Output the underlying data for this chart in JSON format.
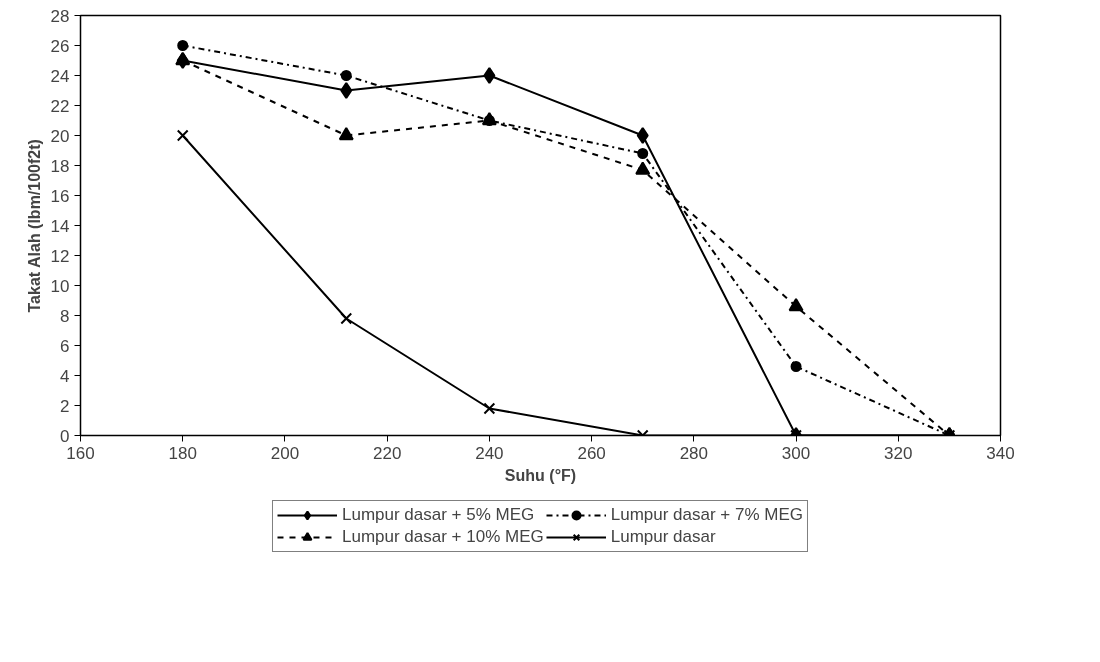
{
  "chart_data": {
    "type": "line",
    "xlabel": "Suhu (°F)",
    "ylabel": "Takat Alah (lbm/100f2t)",
    "x": [
      180,
      212,
      240,
      270,
      300,
      330
    ],
    "xlim": [
      160,
      340
    ],
    "xticks": [
      160,
      180,
      200,
      220,
      240,
      260,
      280,
      300,
      320,
      340
    ],
    "ylim": [
      0,
      28
    ],
    "yticks": [
      0,
      2,
      4,
      6,
      8,
      10,
      12,
      14,
      16,
      18,
      20,
      22,
      24,
      26,
      28
    ],
    "grid": false,
    "legend": "bottom",
    "series": [
      {
        "name": "Lumpur dasar + 5% MEG",
        "color": "#000000",
        "marker": "diamond",
        "line_style": "solid",
        "values": [
          25,
          23,
          24,
          20,
          0,
          0
        ]
      },
      {
        "name": "Lumpur dasar + 7% MEG",
        "color": "#000000",
        "marker": "circle",
        "line_style": "dashdot",
        "values": [
          26,
          24,
          21,
          18.8,
          4.6,
          0
        ]
      },
      {
        "name": "Lumpur dasar + 10% MEG",
        "color": "#000000",
        "marker": "triangle",
        "line_style": "dashed",
        "values": [
          25,
          20,
          21,
          17.7,
          8.6,
          0
        ]
      },
      {
        "name": "Lumpur dasar",
        "color": "#000000",
        "marker": "cross",
        "line_style": "solid",
        "values": [
          20,
          7.8,
          1.8,
          0,
          0,
          0
        ]
      }
    ]
  }
}
